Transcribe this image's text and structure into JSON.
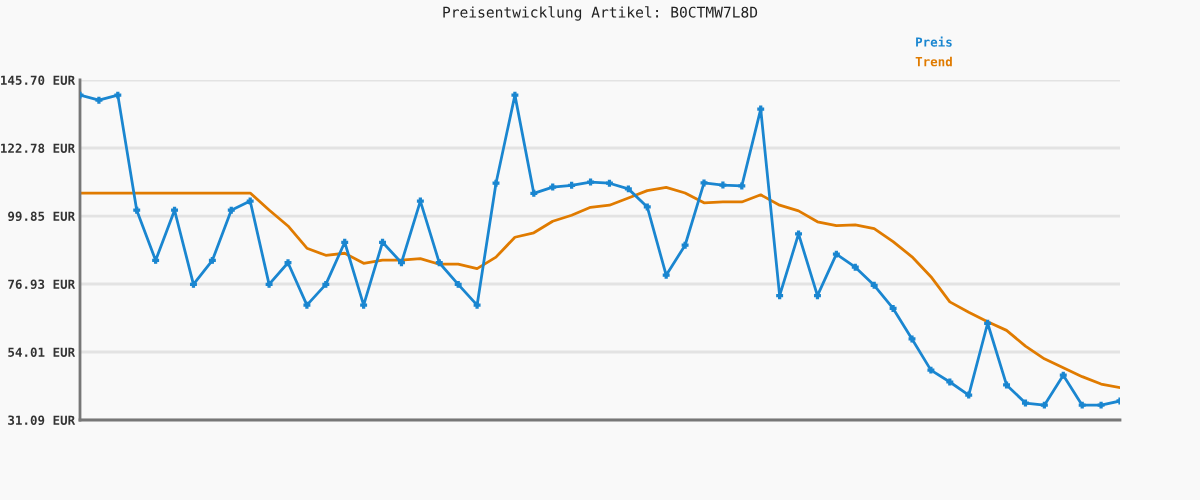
{
  "chart_data": {
    "type": "line",
    "title": "Preisentwicklung Artikel: B0CTMW7L8D",
    "categories": [
      null,
      null,
      null,
      null,
      null,
      null,
      null,
      null,
      null,
      null,
      null,
      null,
      null,
      null,
      null,
      null,
      null,
      null,
      null,
      null,
      null,
      null,
      null,
      null,
      null,
      null,
      null,
      null,
      null,
      null,
      null,
      null,
      null,
      null,
      null,
      null,
      null,
      null,
      null,
      null,
      null,
      null,
      null,
      null,
      null,
      null,
      null,
      null,
      null,
      null,
      null,
      null,
      null,
      null,
      null,
      null
    ],
    "series": [
      {
        "name": "Preis",
        "color": "#1a86d0",
        "marker": "cross",
        "values": [
          140.6,
          138.9,
          140.6,
          101.8,
          84.9,
          101.8,
          76.8,
          84.9,
          101.8,
          104.9,
          76.8,
          84.1,
          69.8,
          76.8,
          91.0,
          69.8,
          91.0,
          84.1,
          104.9,
          84.1,
          76.8,
          69.8,
          110.9,
          140.6,
          107.5,
          109.6,
          110.2,
          111.3,
          110.9,
          109.0,
          102.9,
          79.9,
          90.0,
          111.0,
          110.3,
          110.0,
          135.9,
          73.0,
          93.8,
          73.0,
          87.0,
          82.6,
          76.5,
          68.7,
          58.4,
          47.9,
          43.9,
          39.5,
          63.7,
          42.9,
          36.8,
          36.1,
          46.2,
          36.1,
          36.1,
          37.5
        ]
      },
      {
        "name": "Trend",
        "color": "#e07b00",
        "marker": "none",
        "values": [
          107.6,
          107.6,
          107.6,
          107.6,
          107.6,
          107.6,
          107.6,
          107.6,
          107.6,
          107.6,
          101.9,
          96.5,
          89.0,
          86.6,
          87.3,
          83.9,
          85.0,
          85.0,
          85.5,
          83.6,
          83.6,
          82.1,
          86.0,
          92.7,
          94.2,
          98.1,
          100.1,
          102.8,
          103.5,
          105.9,
          108.4,
          109.5,
          107.6,
          104.3,
          104.6,
          104.6,
          107.0,
          103.5,
          101.6,
          97.9,
          96.6,
          96.9,
          95.6,
          91.2,
          86.1,
          79.4,
          70.9,
          67.4,
          64.2,
          61.3,
          56.0,
          51.7,
          48.7,
          45.7,
          43.2,
          42.0
        ]
      }
    ],
    "ylim": [
      31.09,
      145.7
    ],
    "yticks": [
      {
        "value": 31.09,
        "label": "31.09 EUR"
      },
      {
        "value": 54.01,
        "label": "54.01 EUR"
      },
      {
        "value": 76.93,
        "label": "76.93 EUR"
      },
      {
        "value": 99.85,
        "label": "99.85 EUR"
      },
      {
        "value": 122.78,
        "label": "122.78 EUR"
      },
      {
        "value": 145.7,
        "label": "145.70 EUR"
      }
    ],
    "grid": "y",
    "legend": "top right",
    "line_style": "solid"
  }
}
